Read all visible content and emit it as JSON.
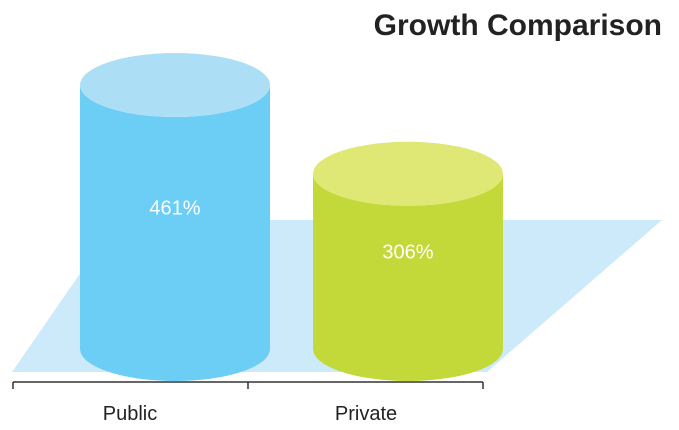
{
  "chart_data": {
    "type": "bar",
    "title": "Growth Comparison",
    "xlabel": "",
    "ylabel": "",
    "categories": [
      "Public",
      "Private"
    ],
    "values": [
      461,
      306
    ],
    "value_labels": [
      "461%",
      "306%"
    ],
    "unit": "%",
    "grid": false,
    "legend": "none",
    "colors": {
      "public_body": "#6ccef5",
      "public_top": "#acdff6",
      "private_body": "#c3d93a",
      "private_top": "#dfe874",
      "floor": "#cdeafb",
      "axis": "#333333",
      "title": "#222222",
      "value_label": "#ffffff"
    }
  }
}
